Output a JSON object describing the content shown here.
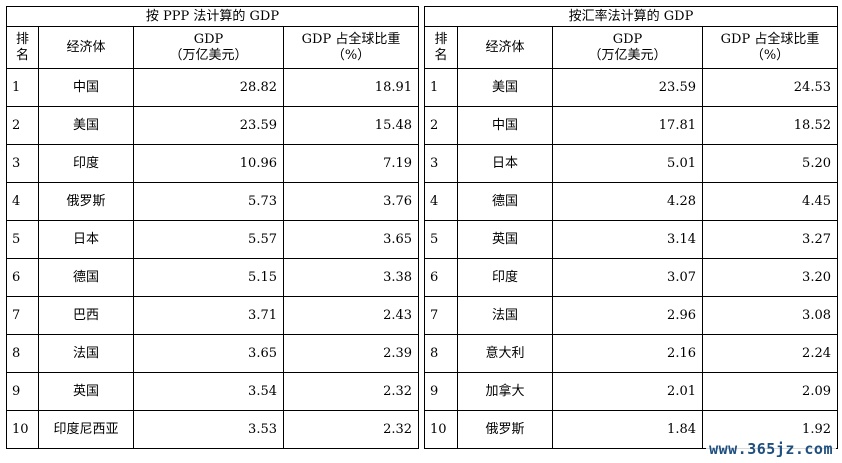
{
  "left": {
    "title": "按 PPP 法计算的 GDP",
    "headers": {
      "rank": "排名",
      "economy": "经济体",
      "gdp": "GDP\n（万亿美元）",
      "share": "GDP 占全球比重\n（%）"
    },
    "rows": [
      {
        "rank": "1",
        "economy": "中国",
        "gdp": "28.82",
        "share": "18.91"
      },
      {
        "rank": "2",
        "economy": "美国",
        "gdp": "23.59",
        "share": "15.48"
      },
      {
        "rank": "3",
        "economy": "印度",
        "gdp": "10.96",
        "share": "7.19"
      },
      {
        "rank": "4",
        "economy": "俄罗斯",
        "gdp": "5.73",
        "share": "3.76"
      },
      {
        "rank": "5",
        "economy": "日本",
        "gdp": "5.57",
        "share": "3.65"
      },
      {
        "rank": "6",
        "economy": "德国",
        "gdp": "5.15",
        "share": "3.38"
      },
      {
        "rank": "7",
        "economy": "巴西",
        "gdp": "3.71",
        "share": "2.43"
      },
      {
        "rank": "8",
        "economy": "法国",
        "gdp": "3.65",
        "share": "2.39"
      },
      {
        "rank": "9",
        "economy": "英国",
        "gdp": "3.54",
        "share": "2.32"
      },
      {
        "rank": "10",
        "economy": "印度尼西亚",
        "gdp": "3.53",
        "share": "2.32"
      }
    ]
  },
  "right": {
    "title": "按汇率法计算的 GDP",
    "headers": {
      "rank": "排名",
      "economy": "经济体",
      "gdp": "GDP\n（万亿美元）",
      "share": "GDP 占全球比重\n（%）"
    },
    "rows": [
      {
        "rank": "1",
        "economy": "美国",
        "gdp": "23.59",
        "share": "24.53"
      },
      {
        "rank": "2",
        "economy": "中国",
        "gdp": "17.81",
        "share": "18.52"
      },
      {
        "rank": "3",
        "economy": "日本",
        "gdp": "5.01",
        "share": "5.20"
      },
      {
        "rank": "4",
        "economy": "德国",
        "gdp": "4.28",
        "share": "4.45"
      },
      {
        "rank": "5",
        "economy": "英国",
        "gdp": "3.14",
        "share": "3.27"
      },
      {
        "rank": "6",
        "economy": "印度",
        "gdp": "3.07",
        "share": "3.20"
      },
      {
        "rank": "7",
        "economy": "法国",
        "gdp": "2.96",
        "share": "3.08"
      },
      {
        "rank": "8",
        "economy": "意大利",
        "gdp": "2.16",
        "share": "2.24"
      },
      {
        "rank": "9",
        "economy": "加拿大",
        "gdp": "2.01",
        "share": "2.09"
      },
      {
        "rank": "10",
        "economy": "俄罗斯",
        "gdp": "1.84",
        "share": "1.92"
      }
    ]
  },
  "watermark": "www.365jz.com"
}
